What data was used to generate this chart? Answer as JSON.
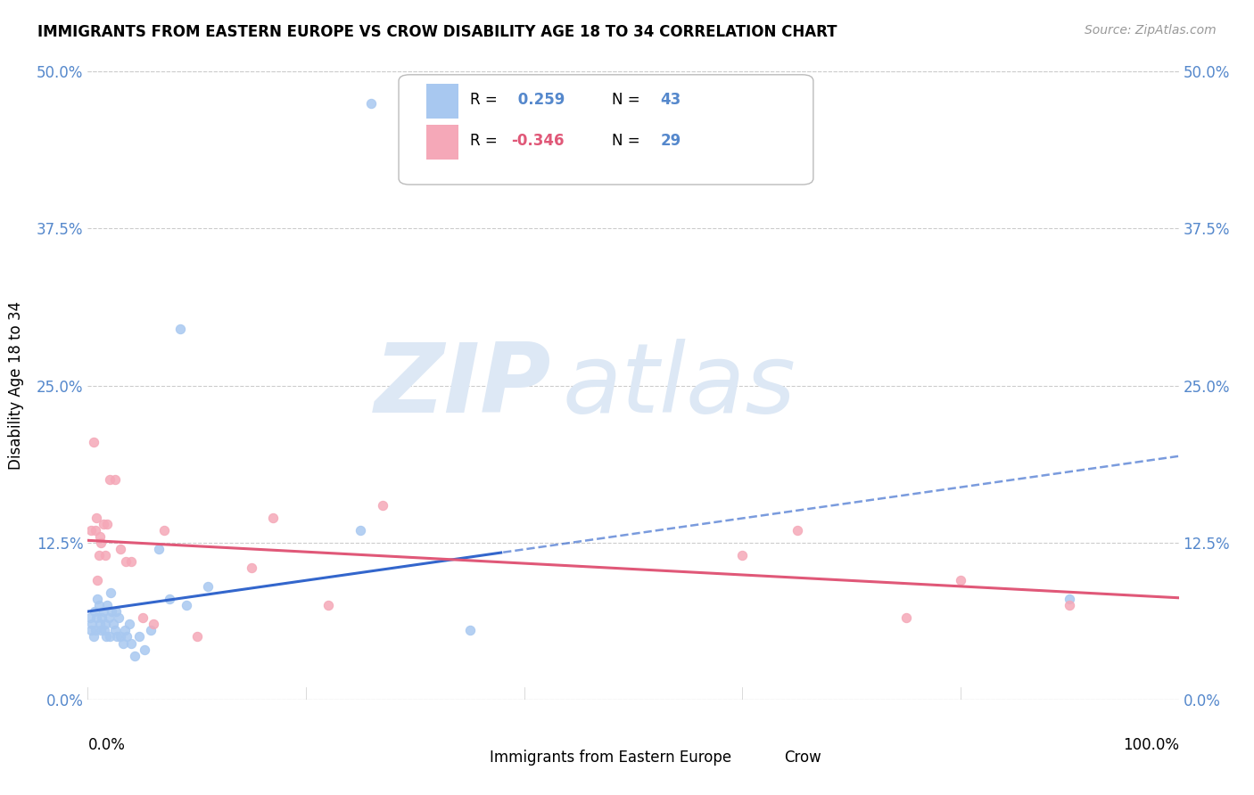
{
  "title": "IMMIGRANTS FROM EASTERN EUROPE VS CROW DISABILITY AGE 18 TO 34 CORRELATION CHART",
  "source": "Source: ZipAtlas.com",
  "ylabel": "Disability Age 18 to 34",
  "ytick_labels": [
    "0.0%",
    "12.5%",
    "25.0%",
    "37.5%",
    "50.0%"
  ],
  "ytick_values": [
    0.0,
    12.5,
    25.0,
    37.5,
    50.0
  ],
  "xlim": [
    0,
    100
  ],
  "ylim": [
    0,
    50
  ],
  "legend_label1": "Immigrants from Eastern Europe",
  "legend_label2": "Crow",
  "R1": 0.259,
  "N1": 43,
  "R2": -0.346,
  "N2": 29,
  "blue_color": "#a8c8f0",
  "pink_color": "#f5a8b8",
  "blue_line_color": "#3366cc",
  "pink_line_color": "#e05878",
  "watermark_zip": "ZIP",
  "watermark_atlas": "atlas",
  "watermark_color": "#dde8f5",
  "blue_scatter_x": [
    0.2,
    0.3,
    0.4,
    0.5,
    0.6,
    0.7,
    0.8,
    0.9,
    1.0,
    1.1,
    1.2,
    1.3,
    1.4,
    1.5,
    1.6,
    1.7,
    1.8,
    1.9,
    2.0,
    2.1,
    2.2,
    2.3,
    2.5,
    2.6,
    2.7,
    2.8,
    3.0,
    3.2,
    3.4,
    3.6,
    3.8,
    4.0,
    4.3,
    4.7,
    5.2,
    5.8,
    6.5,
    7.5,
    9.0,
    11.0,
    25.0,
    35.0,
    90.0
  ],
  "blue_scatter_y": [
    6.5,
    5.5,
    6.0,
    5.0,
    7.0,
    5.5,
    6.5,
    8.0,
    7.5,
    6.0,
    5.5,
    6.5,
    7.0,
    5.5,
    6.0,
    5.0,
    7.5,
    6.5,
    5.0,
    8.5,
    7.0,
    6.0,
    5.5,
    7.0,
    5.0,
    6.5,
    5.0,
    4.5,
    5.5,
    5.0,
    6.0,
    4.5,
    3.5,
    5.0,
    4.0,
    5.5,
    12.0,
    8.0,
    7.5,
    9.0,
    13.5,
    5.5,
    8.0
  ],
  "blue_outlier_x": 26.0,
  "blue_outlier_y": 47.5,
  "blue_outlier2_x": 8.5,
  "blue_outlier2_y": 29.5,
  "pink_scatter_x": [
    0.3,
    0.5,
    0.7,
    0.8,
    0.9,
    1.0,
    1.1,
    1.2,
    1.4,
    1.6,
    1.8,
    2.0,
    2.5,
    3.0,
    3.5,
    4.0,
    5.0,
    6.0,
    7.0,
    10.0,
    15.0,
    17.0,
    22.0,
    27.0,
    60.0,
    65.0,
    75.0,
    80.0,
    90.0
  ],
  "pink_scatter_y": [
    13.5,
    20.5,
    13.5,
    14.5,
    9.5,
    11.5,
    13.0,
    12.5,
    14.0,
    11.5,
    14.0,
    17.5,
    17.5,
    12.0,
    11.0,
    11.0,
    6.5,
    6.0,
    13.5,
    5.0,
    10.5,
    14.5,
    7.5,
    15.5,
    11.5,
    13.5,
    6.5,
    9.5,
    7.5
  ]
}
